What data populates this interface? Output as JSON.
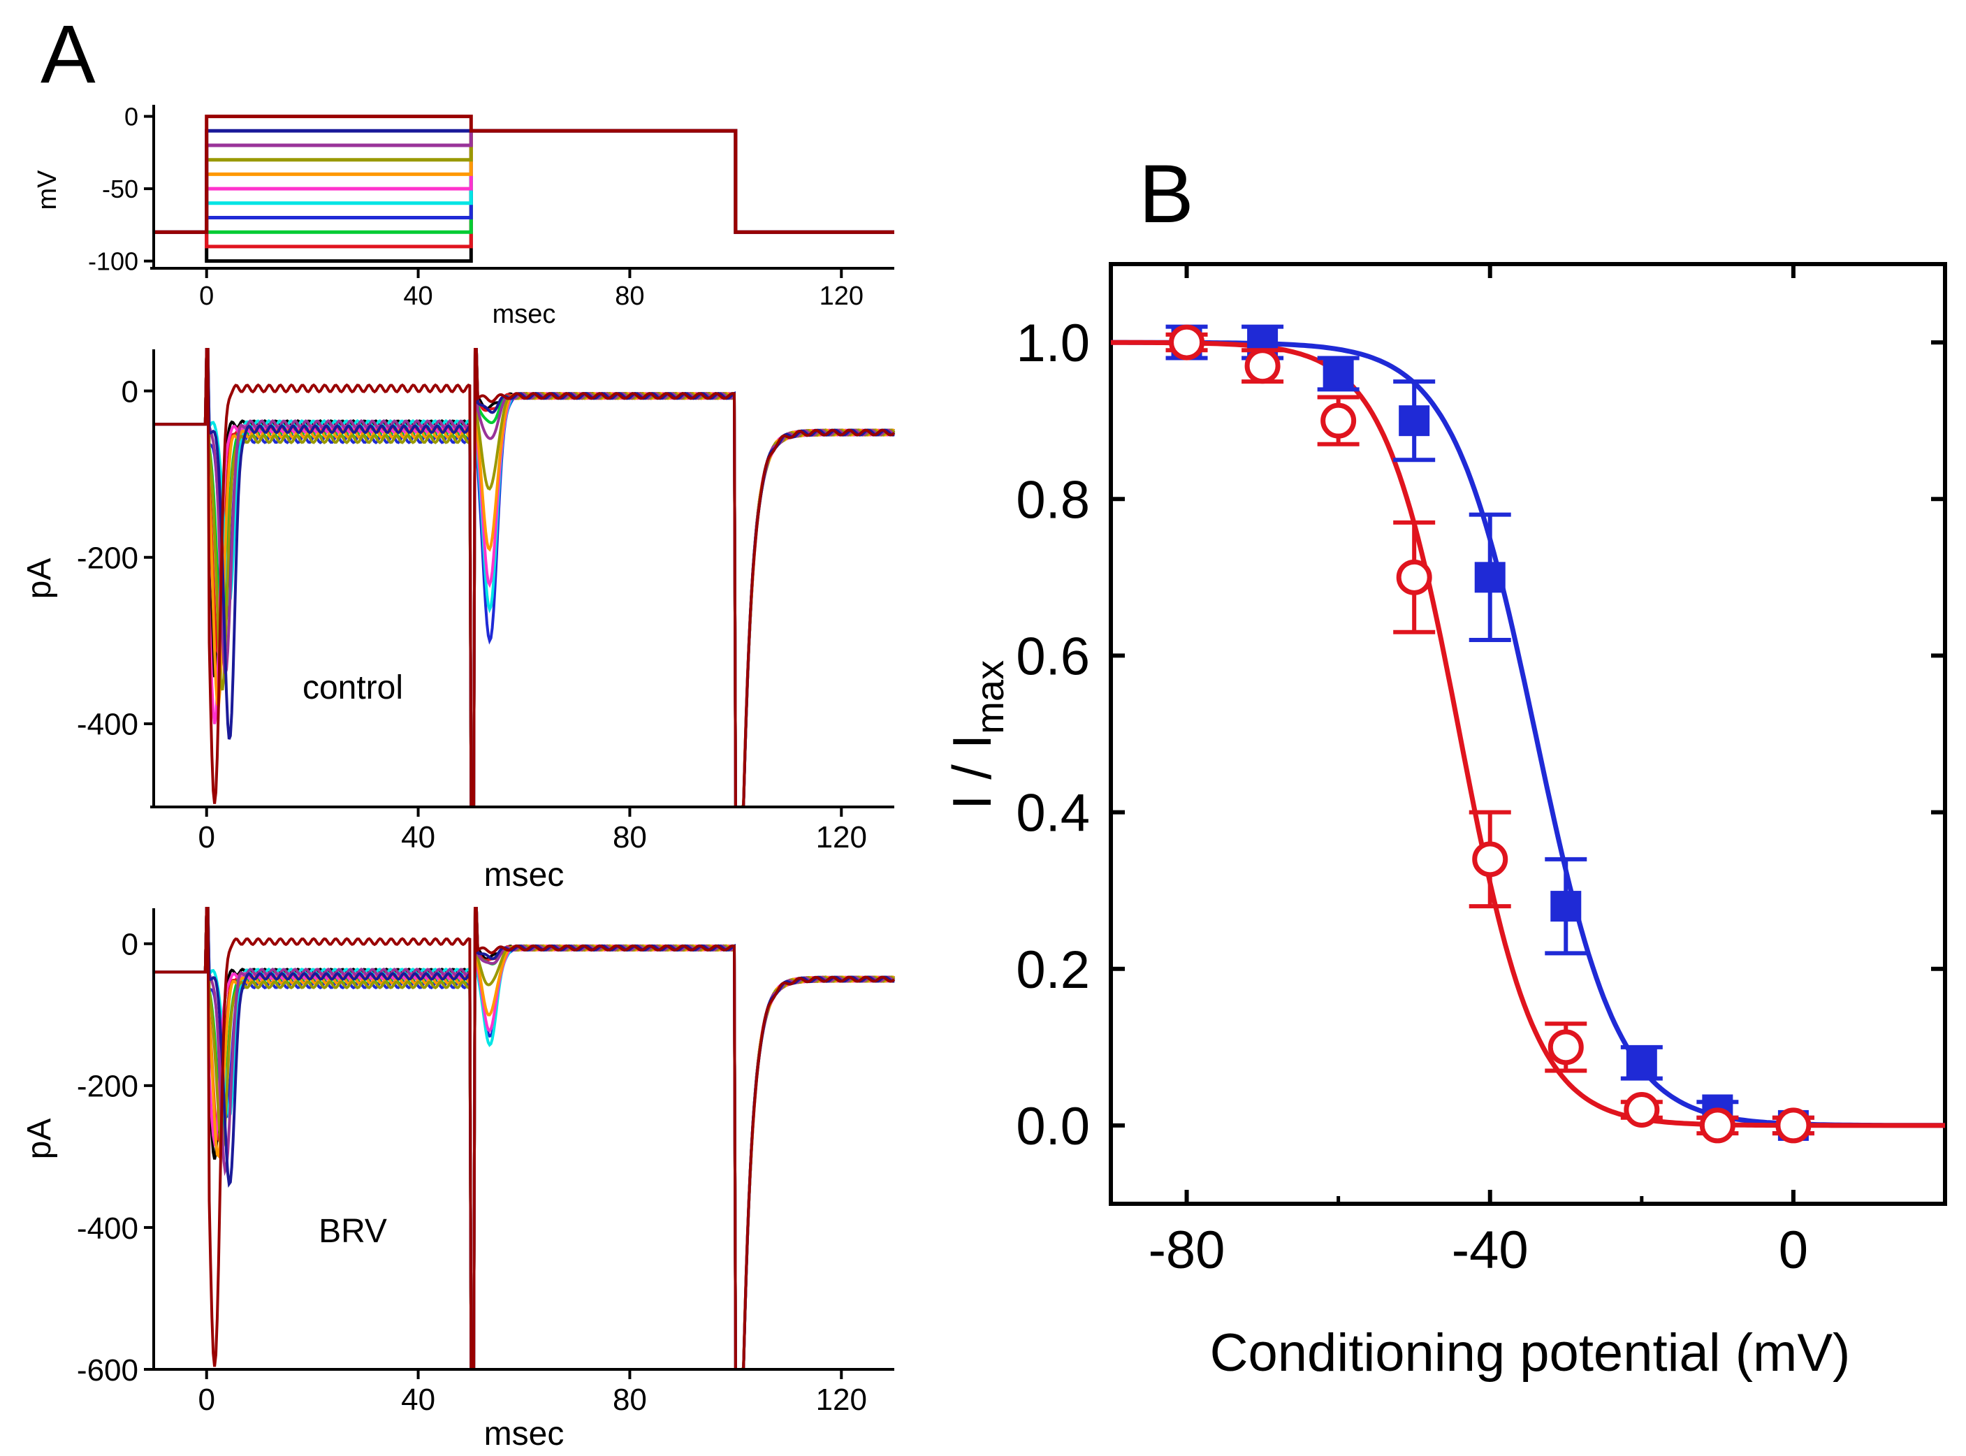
{
  "figure": {
    "panel_a_letter": "A",
    "panel_b_letter": "B"
  },
  "chart_data": [
    {
      "type": "line",
      "id": "protocol",
      "xlabel": "msec",
      "ylabel": "mV",
      "x_ticks": [
        0,
        40,
        80,
        120
      ],
      "y_ticks": [
        0,
        -50,
        -100
      ],
      "xlim": [
        -10,
        130
      ],
      "ylim": [
        -105,
        8
      ],
      "holding_mV": -80,
      "conditioning_start_ms": 0,
      "conditioning_end_ms": 50,
      "test_potential_mV": -10,
      "test_end_ms": 100,
      "conditioning_steps_mV": [
        -100,
        -90,
        -80,
        -70,
        -60,
        -50,
        -40,
        -30,
        -20,
        -10,
        0
      ],
      "trace_colors": [
        "#000000",
        "#e0141e",
        "#00cc33",
        "#1f2ad6",
        "#00e5e5",
        "#ff33cc",
        "#ff9900",
        "#999900",
        "#993399",
        "#1a1a99",
        "#990000"
      ]
    },
    {
      "type": "line",
      "id": "control_currents",
      "label": "control",
      "xlabel": "msec",
      "ylabel": "pA",
      "x_ticks": [
        0,
        40,
        80,
        120
      ],
      "y_ticks": [
        0,
        -200,
        -400
      ],
      "xlim": [
        -10,
        130
      ],
      "ylim": [
        -500,
        50
      ],
      "baseline_pA": -40,
      "transient_peak_pA": [
        -340,
        -320,
        -300,
        -280,
        -250,
        -400,
        -380,
        -360,
        -340,
        -420,
        -500
      ],
      "test_peak_pA": [
        -20,
        -25,
        -40,
        -300,
        -260,
        -230,
        -190,
        -120,
        -60,
        -25,
        -10
      ],
      "tail_peak_pA": -500
    },
    {
      "type": "line",
      "id": "brv_currents",
      "label": "BRV",
      "xlabel": "msec",
      "ylabel": "pA",
      "x_ticks": [
        0,
        40,
        80,
        120
      ],
      "y_ticks": [
        0,
        -200,
        -400,
        -600
      ],
      "xlim": [
        -10,
        130
      ],
      "ylim": [
        -600,
        50
      ],
      "baseline_pA": -40,
      "transient_peak_pA": [
        -300,
        -280,
        -260,
        -250,
        -240,
        -280,
        -300,
        -290,
        -320,
        -340,
        -600
      ],
      "test_peak_pA": [
        -20,
        -25,
        -30,
        -130,
        -140,
        -120,
        -100,
        -60,
        -30,
        -20,
        -10
      ],
      "tail_peak_pA": -600
    },
    {
      "type": "scatter",
      "id": "availability",
      "xlabel": "Conditioning potential (mV)",
      "ylabel_main": "I / I",
      "ylabel_sub": "max",
      "x_ticks": [
        -80,
        -40,
        0
      ],
      "y_ticks": [
        0.0,
        0.2,
        0.4,
        0.6,
        0.8,
        1.0
      ],
      "y_tick_labels": [
        "0.0",
        "0.2",
        "0.4",
        "0.6",
        "0.8",
        "1.0"
      ],
      "xlim": [
        -90,
        20
      ],
      "ylim": [
        -0.1,
        1.1
      ],
      "series": [
        {
          "name": "control",
          "marker": "filled-square",
          "color": "#1f2ad6",
          "x": [
            -80,
            -70,
            -60,
            -50,
            -40,
            -30,
            -20,
            -10,
            0
          ],
          "y": [
            1.0,
            1.0,
            0.96,
            0.9,
            0.7,
            0.28,
            0.08,
            0.02,
            0.0
          ],
          "err": [
            0.02,
            0.02,
            0.02,
            0.05,
            0.08,
            0.06,
            0.02,
            0.01,
            0.01
          ],
          "fit": {
            "v_half": -34,
            "k": 5.5
          }
        },
        {
          "name": "BRV",
          "marker": "open-circle",
          "color": "#e0141e",
          "x": [
            -80,
            -70,
            -60,
            -50,
            -40,
            -30,
            -20,
            -10,
            0
          ],
          "y": [
            1.0,
            0.97,
            0.9,
            0.7,
            0.34,
            0.1,
            0.02,
            0.0,
            0.0
          ],
          "err": [
            0.01,
            0.02,
            0.03,
            0.07,
            0.06,
            0.03,
            0.01,
            0.01,
            0.01
          ],
          "fit": {
            "v_half": -44,
            "k": 5.0
          }
        }
      ]
    }
  ]
}
